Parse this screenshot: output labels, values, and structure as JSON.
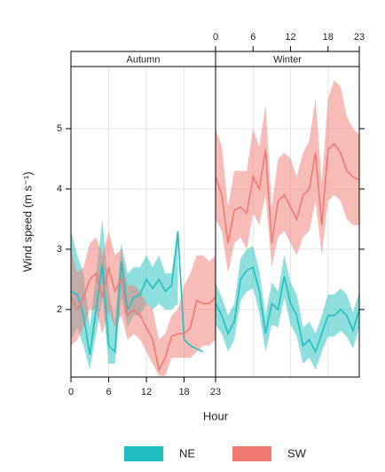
{
  "chart_data": {
    "type": "line",
    "ylabel": "Wind speed (m s⁻¹)",
    "xlabel": "Hour",
    "ylim": [
      0.88,
      6.03
    ],
    "yticks": [
      2,
      3,
      4,
      5
    ],
    "xlim": [
      0,
      23
    ],
    "xticks": [
      0,
      6,
      12,
      18,
      23
    ],
    "grid": true,
    "series": [
      {
        "name": "NE",
        "color": "#1fbfc0"
      },
      {
        "name": "SW",
        "color": "#f07a72"
      }
    ],
    "panels": [
      {
        "title": "Autumn",
        "x": [
          0,
          1,
          2,
          3,
          4,
          5,
          6,
          7,
          8,
          9,
          10,
          11,
          12,
          13,
          14,
          15,
          16,
          17,
          18,
          19,
          20,
          21,
          22,
          23
        ],
        "series": [
          {
            "values": [
              2.3,
              2.25,
              1.9,
              1.25,
              2.0,
              2.75,
              1.4,
              1.3,
              2.8,
              2.0,
              2.2,
              2.25,
              2.5,
              2.35,
              2.5,
              2.3,
              2.4,
              3.3,
              1.5,
              1.4,
              1.35,
              1.3,
              null,
              null
            ],
            "lower": [
              1.5,
              1.7,
              1.4,
              1.0,
              1.6,
              2.2,
              1.1,
              1.1,
              2.2,
              1.7,
              1.9,
              1.9,
              2.1,
              2.0,
              2.1,
              2.0,
              2.0,
              2.1,
              null,
              null,
              null,
              null,
              null,
              null
            ],
            "upper": [
              3.3,
              2.9,
              2.6,
              1.7,
              2.6,
              3.5,
              2.3,
              1.8,
              3.1,
              2.6,
              2.7,
              2.7,
              2.9,
              2.7,
              2.9,
              2.6,
              2.6,
              3.3,
              null,
              null,
              null,
              null,
              null,
              null
            ]
          },
          {
            "values": [
              2.2,
              2.0,
              2.2,
              2.5,
              2.6,
              2.2,
              2.7,
              2.3,
              2.5,
              1.9,
              2.0,
              1.9,
              1.7,
              1.5,
              1.0,
              1.2,
              1.55,
              1.6,
              1.6,
              1.7,
              2.15,
              2.1,
              2.1,
              2.2
            ],
            "lower": [
              1.4,
              1.5,
              1.7,
              2.0,
              2.0,
              1.6,
              2.0,
              1.7,
              1.9,
              1.5,
              1.6,
              1.5,
              1.3,
              1.1,
              0.9,
              0.9,
              1.2,
              1.2,
              1.2,
              1.2,
              1.3,
              1.4,
              1.4,
              1.5
            ],
            "upper": [
              3.0,
              2.6,
              2.7,
              3.1,
              3.2,
              2.9,
              3.3,
              2.9,
              3.0,
              2.4,
              2.4,
              2.3,
              2.1,
              2.0,
              1.5,
              1.6,
              1.9,
              2.0,
              2.4,
              2.6,
              2.9,
              2.9,
              2.8,
              2.9
            ]
          }
        ]
      },
      {
        "title": "Winter",
        "x": [
          0,
          1,
          2,
          3,
          4,
          5,
          6,
          7,
          8,
          9,
          10,
          11,
          12,
          13,
          14,
          15,
          16,
          17,
          18,
          19,
          20,
          21,
          22,
          23
        ],
        "series": [
          {
            "values": [
              2.1,
              1.9,
              1.6,
              1.8,
              2.5,
              2.65,
              2.7,
              2.3,
              1.6,
              2.1,
              2.0,
              2.55,
              2.1,
              1.9,
              1.4,
              1.5,
              1.3,
              1.6,
              1.9,
              1.9,
              2.0,
              1.9,
              1.65,
              2.0
            ],
            "lower": [
              1.75,
              1.6,
              1.3,
              1.5,
              2.15,
              2.3,
              2.35,
              1.95,
              1.3,
              1.75,
              1.7,
              2.2,
              1.75,
              1.55,
              1.1,
              1.2,
              1.0,
              1.3,
              1.55,
              1.55,
              1.65,
              1.55,
              1.35,
              1.7
            ],
            "upper": [
              2.45,
              2.2,
              1.9,
              2.1,
              2.85,
              3.0,
              3.05,
              2.65,
              1.9,
              2.45,
              2.3,
              2.9,
              2.45,
              2.25,
              1.7,
              1.8,
              1.6,
              1.9,
              2.25,
              2.25,
              2.35,
              2.25,
              1.95,
              2.3
            ]
          },
          {
            "values": [
              4.2,
              3.9,
              3.1,
              3.65,
              3.7,
              3.6,
              4.2,
              4.0,
              4.65,
              3.1,
              3.8,
              3.9,
              3.7,
              3.5,
              3.9,
              4.0,
              4.6,
              3.4,
              4.65,
              4.75,
              4.6,
              4.3,
              4.2,
              4.15
            ],
            "lower": [
              3.5,
              3.3,
              2.6,
              3.1,
              3.2,
              3.0,
              3.6,
              3.4,
              3.9,
              2.7,
              3.2,
              3.3,
              3.1,
              2.9,
              3.2,
              3.3,
              3.8,
              2.9,
              3.8,
              3.9,
              3.8,
              3.5,
              3.4,
              3.4
            ],
            "upper": [
              5.0,
              4.7,
              3.7,
              4.3,
              4.3,
              4.3,
              5.0,
              4.7,
              5.4,
              3.7,
              4.5,
              4.6,
              4.5,
              4.2,
              4.6,
              4.8,
              5.5,
              4.1,
              5.5,
              5.8,
              5.7,
              5.2,
              5.0,
              4.9
            ]
          }
        ]
      }
    ]
  }
}
